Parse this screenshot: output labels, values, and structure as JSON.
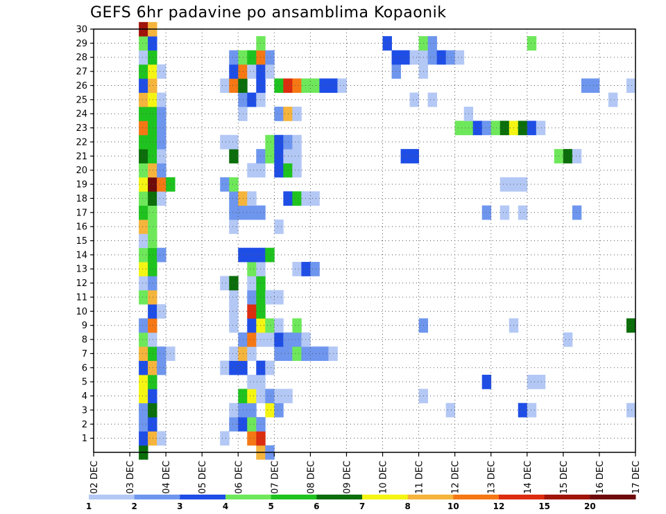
{
  "chart_data": {
    "type": "heatmap",
    "title": "GEFS 6hr padavine po ansamblima Kopaonik",
    "x_tick_labels": [
      "02 DEC",
      "03 DEC",
      "04 DEC",
      "05 DEC",
      "06 DEC",
      "07 DEC",
      "08 DEC",
      "09 DEC",
      "10 DEC",
      "11 DEC",
      "12 DEC",
      "13 DEC",
      "14 DEC",
      "15 DEC",
      "16 DEC",
      "17 DEC"
    ],
    "x_range_days": [
      2,
      17
    ],
    "y_tick_labels": [
      1,
      2,
      3,
      4,
      5,
      6,
      7,
      8,
      9,
      10,
      11,
      12,
      13,
      14,
      15,
      16,
      17,
      18,
      19,
      20,
      21,
      22,
      23,
      24,
      25,
      26,
      27,
      28,
      29,
      30
    ],
    "y_range_members": [
      0,
      30
    ],
    "grid": "dotted",
    "colorbar": {
      "labels": [
        "1",
        "2",
        "3",
        "4",
        "5",
        "6",
        "7",
        "8",
        "10",
        "12",
        "15",
        "20"
      ],
      "colors": [
        "#b4c8f5",
        "#6e96ee",
        "#1f4ee6",
        "#6ee85a",
        "#1fc31f",
        "#0b6e0b",
        "#f5f514",
        "#f5b43c",
        "#f57814",
        "#dc2d0f",
        "#a0140a",
        "#6e0a0a"
      ]
    },
    "levels_legend": "level 1=1-2, 2=2-3, 3=3-4, 4=4-5, 5=5-6, 6=6-7, 7=7-8, 8=8-10, 9=10-12, 10=12-15, 11=15-20, 12=>20",
    "cells": {
      "30": [
        [
          3.25,
          11
        ],
        [
          3.5,
          8
        ]
      ],
      "29": [
        [
          3.25,
          4
        ],
        [
          3.5,
          3
        ],
        [
          6.5,
          4
        ],
        [
          10.0,
          3
        ],
        [
          11.0,
          4
        ],
        [
          11.25,
          2
        ],
        [
          14.0,
          4
        ]
      ],
      "28": [
        [
          3.25,
          1
        ],
        [
          3.5,
          5
        ],
        [
          5.75,
          2
        ],
        [
          6.0,
          4
        ],
        [
          6.25,
          5
        ],
        [
          6.5,
          9
        ],
        [
          6.75,
          2
        ],
        [
          10.25,
          3
        ],
        [
          10.5,
          3
        ],
        [
          10.75,
          1
        ],
        [
          11.0,
          1
        ],
        [
          11.25,
          2
        ],
        [
          11.5,
          3
        ],
        [
          11.75,
          2
        ],
        [
          12.0,
          1
        ]
      ],
      "27": [
        [
          3.25,
          5
        ],
        [
          3.5,
          7
        ],
        [
          3.75,
          1
        ],
        [
          5.75,
          3
        ],
        [
          6.0,
          9
        ],
        [
          6.25,
          1
        ],
        [
          6.5,
          3
        ],
        [
          6.75,
          1
        ],
        [
          10.25,
          2
        ],
        [
          11.0,
          1
        ]
      ],
      "26": [
        [
          3.25,
          3
        ],
        [
          3.5,
          8
        ],
        [
          5.5,
          1
        ],
        [
          5.75,
          9
        ],
        [
          6.0,
          6
        ],
        [
          6.5,
          3
        ],
        [
          7.0,
          5
        ],
        [
          7.25,
          10
        ],
        [
          7.5,
          9
        ],
        [
          7.75,
          4
        ],
        [
          8.0,
          4
        ],
        [
          8.25,
          3
        ],
        [
          8.5,
          3
        ],
        [
          8.75,
          1
        ],
        [
          15.5,
          2
        ],
        [
          15.75,
          2
        ],
        [
          16.75,
          1
        ]
      ],
      "25": [
        [
          3.25,
          8
        ],
        [
          3.5,
          7
        ],
        [
          3.75,
          1
        ],
        [
          6.0,
          2
        ],
        [
          6.25,
          3
        ],
        [
          6.5,
          1
        ],
        [
          10.75,
          1
        ],
        [
          11.25,
          1
        ],
        [
          16.25,
          1
        ]
      ],
      "24": [
        [
          3.25,
          5
        ],
        [
          3.5,
          5
        ],
        [
          3.75,
          2
        ],
        [
          6.0,
          1
        ],
        [
          7.0,
          2
        ],
        [
          7.25,
          8
        ],
        [
          7.5,
          1
        ],
        [
          12.25,
          1
        ]
      ],
      "23": [
        [
          3.25,
          9
        ],
        [
          3.5,
          5
        ],
        [
          3.75,
          2
        ],
        [
          12.0,
          4
        ],
        [
          12.25,
          4
        ],
        [
          12.5,
          3
        ],
        [
          12.75,
          2
        ],
        [
          13.0,
          4
        ],
        [
          13.25,
          6
        ],
        [
          13.5,
          7
        ],
        [
          13.75,
          6
        ],
        [
          14.0,
          3
        ],
        [
          14.25,
          1
        ]
      ],
      "22": [
        [
          3.25,
          5
        ],
        [
          3.5,
          5
        ],
        [
          3.75,
          2
        ],
        [
          5.5,
          1
        ],
        [
          5.75,
          1
        ],
        [
          6.75,
          4
        ],
        [
          7.0,
          3
        ],
        [
          7.25,
          2
        ],
        [
          7.5,
          1
        ]
      ],
      "21": [
        [
          3.25,
          6
        ],
        [
          3.5,
          5
        ],
        [
          3.75,
          1
        ],
        [
          5.75,
          6
        ],
        [
          6.5,
          2
        ],
        [
          6.75,
          4
        ],
        [
          7.0,
          3
        ],
        [
          7.25,
          1
        ],
        [
          7.5,
          1
        ],
        [
          10.5,
          3
        ],
        [
          10.75,
          3
        ],
        [
          14.75,
          4
        ],
        [
          15.0,
          6
        ],
        [
          15.25,
          1
        ]
      ],
      "20": [
        [
          3.25,
          4
        ],
        [
          3.5,
          8
        ],
        [
          3.75,
          2
        ],
        [
          6.25,
          1
        ],
        [
          6.5,
          1
        ],
        [
          7.0,
          3
        ],
        [
          7.25,
          5
        ],
        [
          7.5,
          1
        ]
      ],
      "19": [
        [
          3.25,
          7
        ],
        [
          3.5,
          12
        ],
        [
          3.75,
          9
        ],
        [
          4.0,
          5
        ],
        [
          5.5,
          2
        ],
        [
          5.75,
          4
        ],
        [
          13.25,
          1
        ],
        [
          13.5,
          1
        ],
        [
          13.75,
          1
        ]
      ],
      "18": [
        [
          3.25,
          4
        ],
        [
          3.5,
          6
        ],
        [
          3.75,
          1
        ],
        [
          5.75,
          2
        ],
        [
          6.0,
          8
        ],
        [
          6.25,
          1
        ],
        [
          7.25,
          3
        ],
        [
          7.5,
          5
        ],
        [
          7.75,
          1
        ],
        [
          8.0,
          1
        ]
      ],
      "17": [
        [
          3.25,
          5
        ],
        [
          3.5,
          4
        ],
        [
          5.75,
          2
        ],
        [
          6.0,
          2
        ],
        [
          6.25,
          2
        ],
        [
          6.5,
          2
        ],
        [
          12.75,
          2
        ],
        [
          13.25,
          1
        ],
        [
          13.75,
          1
        ],
        [
          15.25,
          2
        ]
      ],
      "16": [
        [
          3.25,
          8
        ],
        [
          3.5,
          4
        ],
        [
          5.75,
          1
        ],
        [
          7.0,
          1
        ]
      ],
      "15": [
        [
          3.25,
          1
        ],
        [
          3.5,
          4
        ]
      ],
      "14": [
        [
          3.25,
          4
        ],
        [
          3.5,
          5
        ],
        [
          3.75,
          2
        ],
        [
          6.0,
          3
        ],
        [
          6.25,
          3
        ],
        [
          6.5,
          3
        ],
        [
          6.75,
          5
        ]
      ],
      "13": [
        [
          3.25,
          7
        ],
        [
          3.5,
          5
        ],
        [
          6.25,
          4
        ],
        [
          6.5,
          1
        ],
        [
          7.5,
          1
        ],
        [
          7.75,
          3
        ],
        [
          8.0,
          2
        ]
      ],
      "12": [
        [
          3.25,
          1
        ],
        [
          3.5,
          2
        ],
        [
          5.5,
          1
        ],
        [
          5.75,
          6
        ],
        [
          6.25,
          1
        ],
        [
          6.5,
          5
        ]
      ],
      "11": [
        [
          3.25,
          4
        ],
        [
          3.5,
          8
        ],
        [
          5.75,
          1
        ],
        [
          6.25,
          2
        ],
        [
          6.5,
          5
        ],
        [
          6.75,
          1
        ],
        [
          7.0,
          1
        ]
      ],
      "10": [
        [
          3.5,
          3
        ],
        [
          3.75,
          1
        ],
        [
          5.75,
          1
        ],
        [
          6.25,
          10
        ],
        [
          6.5,
          5
        ]
      ],
      "9": [
        [
          3.25,
          2
        ],
        [
          3.5,
          9
        ],
        [
          5.75,
          1
        ],
        [
          6.25,
          3
        ],
        [
          6.5,
          7
        ],
        [
          6.75,
          4
        ],
        [
          7.0,
          1
        ],
        [
          7.5,
          4
        ],
        [
          11.0,
          2
        ],
        [
          13.5,
          1
        ],
        [
          16.75,
          6
        ]
      ],
      "8": [
        [
          3.25,
          4
        ],
        [
          3.5,
          1
        ],
        [
          6.0,
          2
        ],
        [
          6.25,
          9
        ],
        [
          6.5,
          1
        ],
        [
          6.75,
          1
        ],
        [
          7.0,
          3
        ],
        [
          7.25,
          2
        ],
        [
          7.5,
          2
        ],
        [
          7.75,
          1
        ],
        [
          15.0,
          1
        ]
      ],
      "7": [
        [
          3.25,
          8
        ],
        [
          3.5,
          5
        ],
        [
          3.75,
          2
        ],
        [
          4.0,
          1
        ],
        [
          5.75,
          1
        ],
        [
          6.0,
          8
        ],
        [
          6.25,
          1
        ],
        [
          7.0,
          2
        ],
        [
          7.25,
          2
        ],
        [
          7.5,
          4
        ],
        [
          7.75,
          2
        ],
        [
          8.0,
          2
        ],
        [
          8.25,
          2
        ],
        [
          8.5,
          1
        ]
      ],
      "6": [
        [
          3.25,
          3
        ],
        [
          3.5,
          8
        ],
        [
          3.75,
          2
        ],
        [
          5.5,
          1
        ],
        [
          5.75,
          3
        ],
        [
          6.0,
          3
        ],
        [
          6.5,
          3
        ],
        [
          6.75,
          1
        ]
      ],
      "5": [
        [
          3.25,
          7
        ],
        [
          3.5,
          5
        ],
        [
          6.25,
          1
        ],
        [
          6.5,
          1
        ],
        [
          12.75,
          3
        ],
        [
          14.0,
          1
        ],
        [
          14.25,
          1
        ]
      ],
      "4": [
        [
          3.25,
          7
        ],
        [
          3.5,
          3
        ],
        [
          6.0,
          5
        ],
        [
          6.25,
          7
        ],
        [
          6.5,
          1
        ],
        [
          6.75,
          2
        ],
        [
          7.0,
          1
        ],
        [
          7.25,
          1
        ],
        [
          11.0,
          1
        ]
      ],
      "3": [
        [
          3.25,
          2
        ],
        [
          3.5,
          6
        ],
        [
          5.75,
          1
        ],
        [
          6.0,
          2
        ],
        [
          6.25,
          2
        ],
        [
          6.75,
          7
        ],
        [
          7.0,
          2
        ],
        [
          11.75,
          1
        ],
        [
          13.75,
          3
        ],
        [
          14.0,
          1
        ],
        [
          16.75,
          1
        ]
      ],
      "2": [
        [
          3.25,
          2
        ],
        [
          3.5,
          3
        ],
        [
          5.75,
          2
        ],
        [
          6.0,
          3
        ],
        [
          6.25,
          4
        ],
        [
          6.5,
          2
        ]
      ],
      "1": [
        [
          3.25,
          3
        ],
        [
          3.5,
          8
        ],
        [
          3.75,
          1
        ],
        [
          5.5,
          1
        ],
        [
          6.25,
          9
        ],
        [
          6.5,
          10
        ]
      ],
      "0": [
        [
          3.25,
          6
        ],
        [
          6.5,
          8
        ],
        [
          6.75,
          2
        ]
      ]
    }
  }
}
